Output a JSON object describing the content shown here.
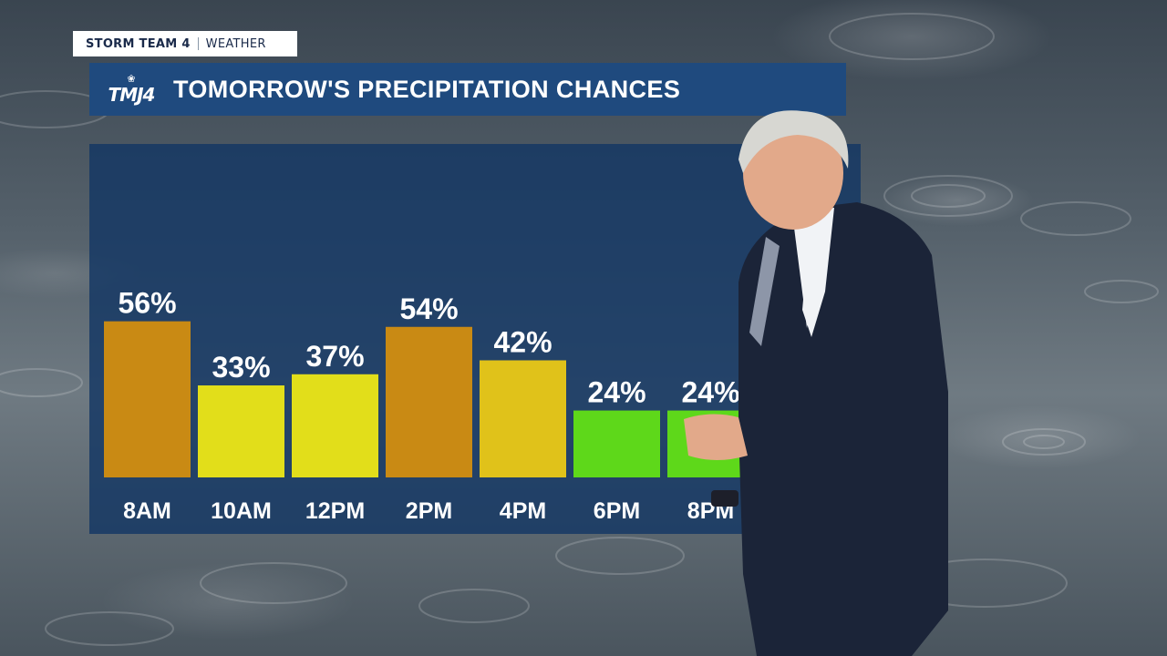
{
  "brand": {
    "station": "STORM TEAM 4",
    "section": "WEATHER",
    "logo_text": "TMJ4"
  },
  "title": "TOMORROW'S PRECIPITATION CHANCES",
  "colors": {
    "title_bg": "#1f4a7e",
    "panel_bg": "#143764",
    "orange_bar": "#c98a14",
    "yellow_bar": "#e2de1a",
    "gold_bar": "#e0c21a",
    "green_bar": "#5ed81a"
  },
  "chart_data": {
    "type": "bar",
    "categories": [
      "8AM",
      "10AM",
      "12PM",
      "2PM",
      "4PM",
      "6PM",
      "8PM"
    ],
    "values": [
      56,
      33,
      37,
      54,
      42,
      24,
      24
    ],
    "value_labels": [
      "56%",
      "33%",
      "37%",
      "54%",
      "42%",
      "24%",
      "24%"
    ],
    "bar_colors": [
      "#c98a14",
      "#e2de1a",
      "#e2de1a",
      "#c98a14",
      "#e0c21a",
      "#5ed81a",
      "#5ed81a"
    ],
    "ylim": [
      0,
      100
    ],
    "grid": false,
    "xlabel": "",
    "ylabel": ""
  }
}
